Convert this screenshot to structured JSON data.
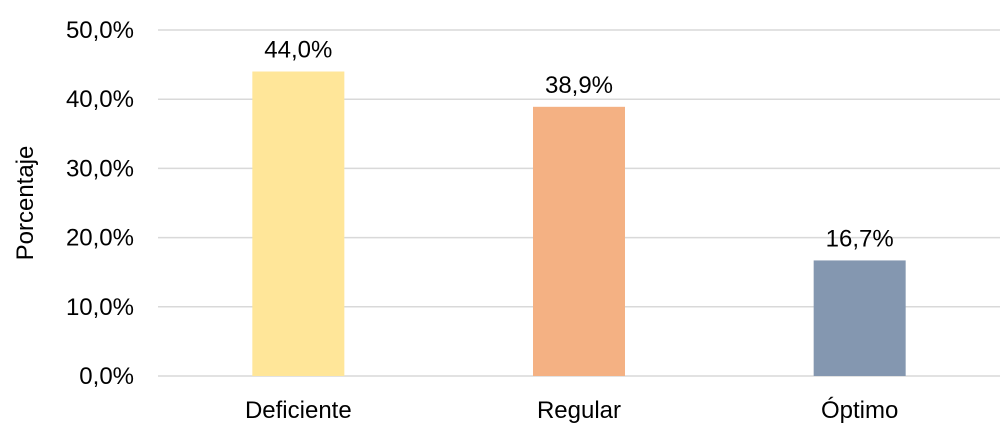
{
  "chart_data": {
    "type": "bar",
    "categories": [
      "Deficiente",
      "Regular",
      "Óptimo"
    ],
    "values": [
      44.0,
      38.9,
      16.7
    ],
    "data_labels": [
      "44,0%",
      "38,9%",
      "16,7%"
    ],
    "colors": [
      "#ffe699",
      "#f4b183",
      "#8497b0"
    ],
    "ylabel": "Porcentaje",
    "ylim": [
      0,
      50
    ],
    "yticks": [
      0,
      10,
      20,
      30,
      40,
      50
    ],
    "ytick_labels": [
      "0,0%",
      "10,0%",
      "20,0%",
      "30,0%",
      "40,0%",
      "50,0%"
    ],
    "grid": true,
    "legend": "none"
  }
}
